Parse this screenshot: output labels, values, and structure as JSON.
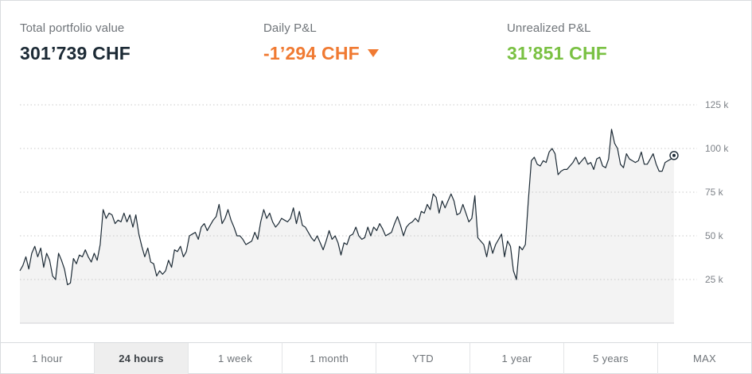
{
  "stats": {
    "total": {
      "label": "Total portfolio value",
      "value": "301’739 CHF"
    },
    "daily": {
      "label": "Daily P&L",
      "value": "-1’294 CHF",
      "trend_icon": "caret-down-icon"
    },
    "unrealized": {
      "label": "Unrealized P&L",
      "value": "31’851 CHF"
    }
  },
  "colors": {
    "text_dark": "#1c2a35",
    "label_gray": "#6f7479",
    "negative": "#f07a32",
    "positive": "#7ac143",
    "line": "#1c2a35",
    "area_fill": "#f3f3f3",
    "grid": "#c9c9c9",
    "active_tab_bg": "#eeeeee"
  },
  "tabs": [
    {
      "label": "1 hour",
      "active": false
    },
    {
      "label": "24 hours",
      "active": true
    },
    {
      "label": "1 week",
      "active": false
    },
    {
      "label": "1 month",
      "active": false
    },
    {
      "label": "YTD",
      "active": false
    },
    {
      "label": "1 year",
      "active": false
    },
    {
      "label": "5 years",
      "active": false
    },
    {
      "label": "MAX",
      "active": false
    }
  ],
  "chart_data": {
    "type": "area",
    "title": "",
    "xlabel": "",
    "ylabel": "",
    "ylim": [
      0,
      125000
    ],
    "y_ticks": [
      {
        "value": 25000,
        "label": "25 k"
      },
      {
        "value": 50000,
        "label": "50 k"
      },
      {
        "value": 75000,
        "label": "75 k"
      },
      {
        "value": 100000,
        "label": "100 k"
      },
      {
        "value": 125000,
        "label": "125 k"
      }
    ],
    "grid": true,
    "grid_style": "dotted",
    "last_point_marker": true,
    "series": [
      {
        "values": [
          30000,
          33000,
          38000,
          31000,
          40000,
          44000,
          38000,
          43000,
          32000,
          40000,
          36000,
          27000,
          25000,
          40000,
          36000,
          31000,
          22000,
          23000,
          37000,
          34000,
          39000,
          38000,
          42000,
          38000,
          35000,
          40000,
          36000,
          45000,
          65000,
          60000,
          63000,
          62000,
          57000,
          59000,
          58000,
          63000,
          58000,
          62000,
          55000,
          62000,
          51000,
          44000,
          38000,
          43000,
          35000,
          34000,
          27000,
          30000,
          28000,
          30000,
          36000,
          32000,
          42000,
          41000,
          44000,
          38000,
          41000,
          50000,
          51000,
          52000,
          48000,
          55000,
          57000,
          53000,
          56000,
          59000,
          61000,
          68000,
          57000,
          60000,
          65000,
          59000,
          55000,
          50000,
          50000,
          48000,
          45000,
          46000,
          47000,
          52000,
          48000,
          58000,
          65000,
          60000,
          63000,
          58000,
          55000,
          57000,
          60000,
          59000,
          58000,
          60000,
          66000,
          57000,
          64000,
          56000,
          55000,
          52000,
          49000,
          47000,
          50000,
          46000,
          42000,
          47000,
          53000,
          48000,
          50000,
          46000,
          39000,
          46000,
          45000,
          50000,
          51000,
          55000,
          50000,
          48000,
          49000,
          55000,
          50000,
          55000,
          53000,
          57000,
          54000,
          50000,
          51000,
          52000,
          57000,
          61000,
          56000,
          50000,
          55000,
          57000,
          58000,
          60000,
          58000,
          64000,
          63000,
          68000,
          65000,
          74000,
          72000,
          63000,
          70000,
          66000,
          70000,
          74000,
          70000,
          62000,
          63000,
          68000,
          63000,
          58000,
          60000,
          73000,
          49000,
          47000,
          45000,
          38000,
          47000,
          40000,
          45000,
          48000,
          51000,
          38000,
          47000,
          44000,
          30000,
          25000,
          44000,
          42000,
          45000,
          70000,
          93000,
          95000,
          91000,
          90000,
          93000,
          92000,
          98000,
          100000,
          97000,
          85000,
          87000,
          88000,
          88000,
          90000,
          92000,
          95000,
          91000,
          93000,
          95000,
          91000,
          92000,
          88000,
          94000,
          95000,
          90000,
          89000,
          94000,
          111000,
          103000,
          100000,
          91000,
          89000,
          97000,
          94000,
          93000,
          92000,
          93000,
          98000,
          91000,
          91000,
          94000,
          97000,
          91000,
          87000,
          87000,
          92000,
          93000,
          94000,
          96000
        ]
      }
    ]
  }
}
